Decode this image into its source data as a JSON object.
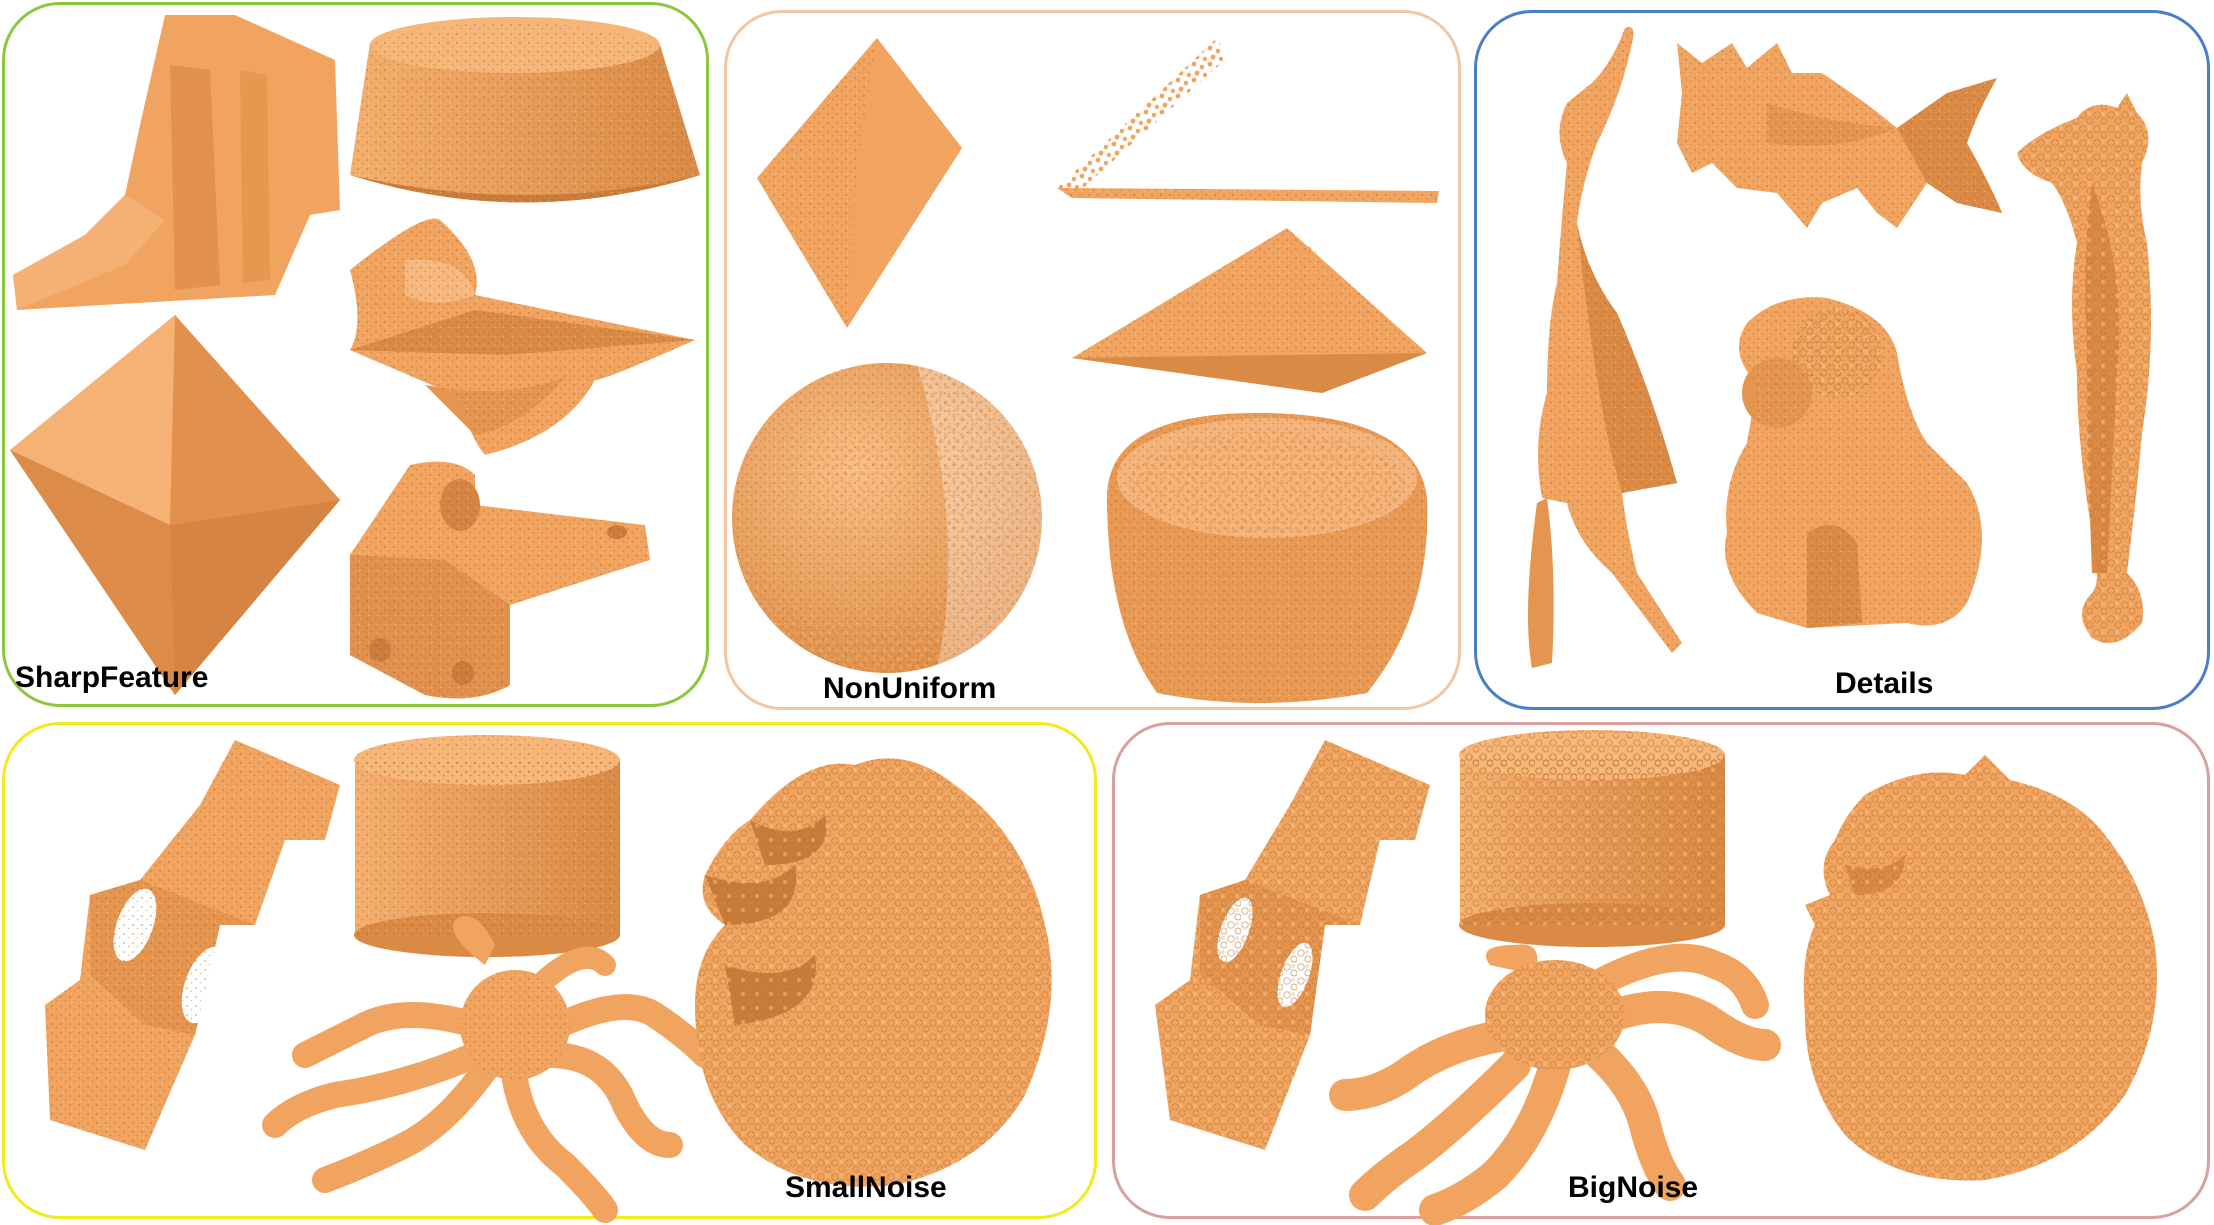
{
  "colors": {
    "shape_fill": "#F0A460",
    "shape_shadow": "#C97C3C",
    "shape_highlight": "#F9BF86",
    "speckle": "#9E5F2A"
  },
  "panels": [
    {
      "label": "SharpFeature",
      "border_color": "#8DC63F"
    },
    {
      "label": "NonUniform",
      "border_color": "#F4C7A4"
    },
    {
      "label": "Details",
      "border_color": "#4A7EC8"
    },
    {
      "label": "SmallNoise",
      "border_color": "#F2EA1A"
    },
    {
      "label": "BigNoise",
      "border_color": "#D9A0A0"
    }
  ]
}
